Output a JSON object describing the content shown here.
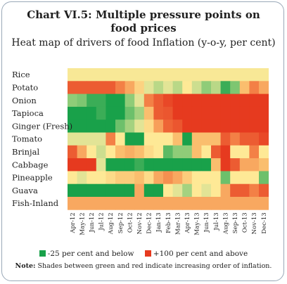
{
  "chart_data": {
    "type": "heatmap",
    "title": "Chart VI.5: Multiple pressure points on food prices",
    "title_line1": "Chart VI.5: Multiple pressure points on",
    "title_line2": "food prices",
    "subtitle": "Heat map of drivers of food Inflation (y-o-y, per cent)",
    "scale": {
      "min": -25,
      "max": 100,
      "low_color": "#19a14a",
      "high_color": "#e63a1f"
    },
    "rows": [
      "Rice",
      "Potato",
      "Onion",
      "Tapioca",
      "Ginger (Fresh)",
      "Tomato",
      "Brinjal",
      "Cabbage",
      "Pineapple",
      "Guava",
      "Fish-Inland"
    ],
    "columns": [
      "Apr-12",
      "May-12",
      "Jun-12",
      "Jul-12",
      "Aug-12",
      "Sep-12",
      "Oct-12",
      "Nov-12",
      "Dec-12",
      "Jan-13",
      "Feb-13",
      "Mar-13",
      "Apr-13",
      "May-13",
      "Jun-13",
      "Jul-13",
      "Aug-13",
      "Sep-13",
      "Oct-13",
      "Nov-13",
      "Dec-13"
    ],
    "values": [
      [
        38,
        38,
        38,
        38,
        38,
        38,
        38,
        38,
        38,
        38,
        38,
        38,
        38,
        38,
        38,
        38,
        38,
        38,
        38,
        38,
        38
      ],
      [
        88,
        88,
        88,
        88,
        88,
        75,
        62,
        48,
        30,
        20,
        30,
        20,
        40,
        25,
        10,
        20,
        -15,
        5,
        55,
        75,
        62
      ],
      [
        10,
        5,
        -15,
        -15,
        -25,
        -25,
        10,
        30,
        75,
        88,
        95,
        100,
        100,
        100,
        100,
        100,
        100,
        100,
        100,
        100,
        100
      ],
      [
        -25,
        -25,
        -25,
        -15,
        -25,
        -25,
        0,
        15,
        55,
        88,
        90,
        100,
        100,
        100,
        100,
        100,
        100,
        100,
        100,
        100,
        100
      ],
      [
        -25,
        -25,
        -25,
        -25,
        -25,
        0,
        15,
        30,
        45,
        65,
        85,
        90,
        100,
        100,
        100,
        100,
        100,
        100,
        100,
        100,
        100
      ],
      [
        30,
        30,
        30,
        30,
        75,
        40,
        -25,
        -25,
        40,
        40,
        40,
        55,
        -25,
        55,
        55,
        55,
        88,
        75,
        88,
        88,
        95
      ],
      [
        88,
        62,
        40,
        25,
        40,
        55,
        60,
        55,
        45,
        40,
        -5,
        10,
        10,
        55,
        40,
        88,
        100,
        40,
        40,
        75,
        40
      ],
      [
        100,
        100,
        100,
        30,
        -25,
        -25,
        -25,
        -15,
        -25,
        -25,
        -25,
        -25,
        -25,
        -25,
        -25,
        55,
        100,
        88,
        62,
        62,
        55
      ],
      [
        40,
        30,
        40,
        40,
        45,
        50,
        50,
        55,
        45,
        62,
        70,
        62,
        50,
        40,
        40,
        40,
        0,
        40,
        40,
        40,
        0
      ],
      [
        -25,
        -25,
        -25,
        -25,
        -25,
        -25,
        -25,
        62,
        -25,
        -25,
        40,
        30,
        15,
        40,
        30,
        40,
        62,
        88,
        88,
        75,
        88
      ],
      [
        62,
        62,
        62,
        62,
        62,
        62,
        62,
        62,
        62,
        62,
        62,
        62,
        62,
        62,
        62,
        62,
        62,
        62,
        62,
        62,
        62
      ]
    ]
  },
  "legend": {
    "low_label": "-25 per cent and below",
    "high_label": "+100 per cent and above"
  },
  "note": {
    "label": "Note:",
    "text": "Shades between green and red indicate increasing order of inflation."
  }
}
